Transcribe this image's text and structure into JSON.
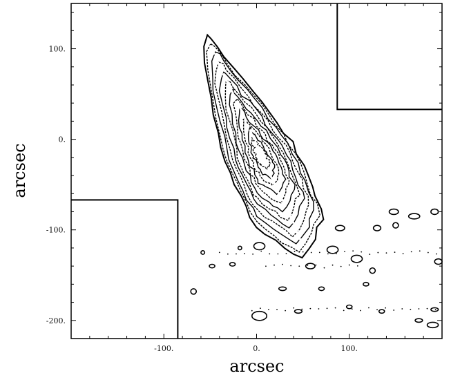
{
  "chart_data": {
    "type": "contour",
    "title": "",
    "xlabel": "arcsec",
    "ylabel": "arcsec",
    "xlim": [
      -200,
      200
    ],
    "ylim": [
      -220,
      150
    ],
    "grid": false,
    "legend": "none",
    "x_ticks": [
      {
        "value": -100,
        "label": "-100."
      },
      {
        "value": 0,
        "label": "0."
      },
      {
        "value": 100,
        "label": "100."
      }
    ],
    "y_ticks": [
      {
        "value": 100,
        "label": "100."
      },
      {
        "value": 0,
        "label": "0."
      },
      {
        "value": -100,
        "label": "-100."
      },
      {
        "value": -200,
        "label": "-200."
      }
    ],
    "field_boundaries": [
      {
        "name": "upper-right-chip-edge",
        "points": [
          [
            87,
            150
          ],
          [
            87,
            33
          ],
          [
            200,
            33
          ]
        ]
      },
      {
        "name": "lower-left-chip-edge",
        "points": [
          [
            -200,
            -67
          ],
          [
            -85,
            -67
          ],
          [
            -85,
            -220
          ]
        ]
      }
    ],
    "main_emission": {
      "name": "tilted-elongated-source",
      "outline": [
        [
          -53,
          115
        ],
        [
          -48,
          112
        ],
        [
          -42,
          102
        ],
        [
          -34,
          90
        ],
        [
          -24,
          78
        ],
        [
          -14,
          66
        ],
        [
          -4,
          54
        ],
        [
          6,
          42
        ],
        [
          14,
          30
        ],
        [
          22,
          18
        ],
        [
          30,
          8
        ],
        [
          38,
          -4
        ],
        [
          44,
          -16
        ],
        [
          50,
          -28
        ],
        [
          56,
          -40
        ],
        [
          60,
          -52
        ],
        [
          64,
          -64
        ],
        [
          70,
          -76
        ],
        [
          72,
          -88
        ],
        [
          66,
          -98
        ],
        [
          64,
          -110
        ],
        [
          58,
          -122
        ],
        [
          50,
          -132
        ],
        [
          40,
          -126
        ],
        [
          30,
          -120
        ],
        [
          20,
          -112
        ],
        [
          10,
          -104
        ],
        [
          0,
          -96
        ],
        [
          -6,
          -86
        ],
        [
          -12,
          -74
        ],
        [
          -18,
          -62
        ],
        [
          -24,
          -50
        ],
        [
          -28,
          -38
        ],
        [
          -34,
          -24
        ],
        [
          -38,
          -8
        ],
        [
          -42,
          8
        ],
        [
          -46,
          26
        ],
        [
          -50,
          44
        ],
        [
          -54,
          64
        ],
        [
          -57,
          84
        ],
        [
          -57,
          104
        ]
      ],
      "ridge": [
        [
          -50,
          104
        ],
        [
          -36,
          72
        ],
        [
          -20,
          40
        ],
        [
          -6,
          8
        ],
        [
          8,
          -24
        ],
        [
          22,
          -56
        ],
        [
          38,
          -88
        ],
        [
          50,
          -118
        ]
      ]
    },
    "patches": [
      {
        "x": 3,
        "y": -195,
        "rx": 8,
        "ry": 5
      },
      {
        "x": 3,
        "y": -118,
        "rx": 6,
        "ry": 4
      },
      {
        "x": 28,
        "y": -165,
        "rx": 4,
        "ry": 2
      },
      {
        "x": 45,
        "y": -190,
        "rx": 4,
        "ry": 2
      },
      {
        "x": 58,
        "y": -140,
        "rx": 5,
        "ry": 3
      },
      {
        "x": 82,
        "y": -122,
        "rx": 6,
        "ry": 4
      },
      {
        "x": 90,
        "y": -98,
        "rx": 5,
        "ry": 3
      },
      {
        "x": 108,
        "y": -132,
        "rx": 6,
        "ry": 4
      },
      {
        "x": 125,
        "y": -145,
        "rx": 3,
        "ry": 3
      },
      {
        "x": 130,
        "y": -98,
        "rx": 4,
        "ry": 3
      },
      {
        "x": 150,
        "y": -95,
        "rx": 3,
        "ry": 3
      },
      {
        "x": 148,
        "y": -80,
        "rx": 5,
        "ry": 3
      },
      {
        "x": 170,
        "y": -85,
        "rx": 6,
        "ry": 3
      },
      {
        "x": 192,
        "y": -80,
        "rx": 4,
        "ry": 3
      },
      {
        "x": 196,
        "y": -135,
        "rx": 4,
        "ry": 3
      },
      {
        "x": 175,
        "y": -200,
        "rx": 4,
        "ry": 2
      },
      {
        "x": 190,
        "y": -205,
        "rx": 6,
        "ry": 3
      },
      {
        "x": 192,
        "y": -188,
        "rx": 4,
        "ry": 2
      },
      {
        "x": 135,
        "y": -190,
        "rx": 3,
        "ry": 2
      },
      {
        "x": 100,
        "y": -185,
        "rx": 3,
        "ry": 2
      },
      {
        "x": -68,
        "y": -168,
        "rx": 3,
        "ry": 3
      },
      {
        "x": -48,
        "y": -140,
        "rx": 3,
        "ry": 2
      },
      {
        "x": -58,
        "y": -125,
        "rx": 2,
        "ry": 2
      },
      {
        "x": -26,
        "y": -138,
        "rx": 3,
        "ry": 2
      },
      {
        "x": -18,
        "y": -120,
        "rx": 2,
        "ry": 2
      },
      {
        "x": 118,
        "y": -160,
        "rx": 3,
        "ry": 2
      },
      {
        "x": 70,
        "y": -165,
        "rx": 3,
        "ry": 2
      }
    ],
    "dotted_rows": [
      {
        "y": -188,
        "x_from": -5,
        "x_to": 195
      },
      {
        "y": -125,
        "x_from": -40,
        "x_to": 195
      },
      {
        "y": -140,
        "x_from": 10,
        "x_to": 110
      }
    ]
  }
}
